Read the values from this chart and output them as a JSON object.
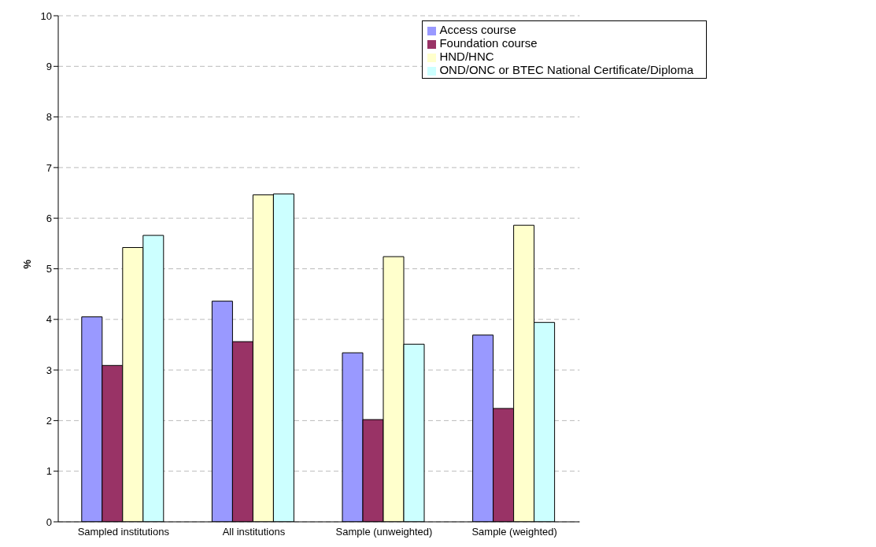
{
  "chart_data": {
    "type": "bar",
    "ylabel": "%",
    "categories": [
      "Sampled institutions",
      "All institutions",
      "Sample (unweighted)",
      "Sample (weighted)"
    ],
    "series": [
      {
        "name": "Access course",
        "color": "#9999ff",
        "values": [
          4.05,
          4.36,
          3.34,
          3.69
        ]
      },
      {
        "name": "Foundation course",
        "color": "#993366",
        "values": [
          3.09,
          3.56,
          2.02,
          2.24
        ]
      },
      {
        "name": "HND/HNC",
        "color": "#ffffcc",
        "values": [
          5.42,
          6.46,
          5.24,
          5.86
        ]
      },
      {
        "name": "OND/ONC or BTEC National Certificate/Diploma",
        "color": "#ccffff",
        "values": [
          5.66,
          6.48,
          3.51,
          3.94
        ]
      }
    ],
    "ylim": [
      0,
      10
    ],
    "yticks": [
      0,
      1,
      2,
      3,
      4,
      5,
      6,
      7,
      8,
      9,
      10
    ],
    "grid": "y",
    "legend": "top right"
  }
}
